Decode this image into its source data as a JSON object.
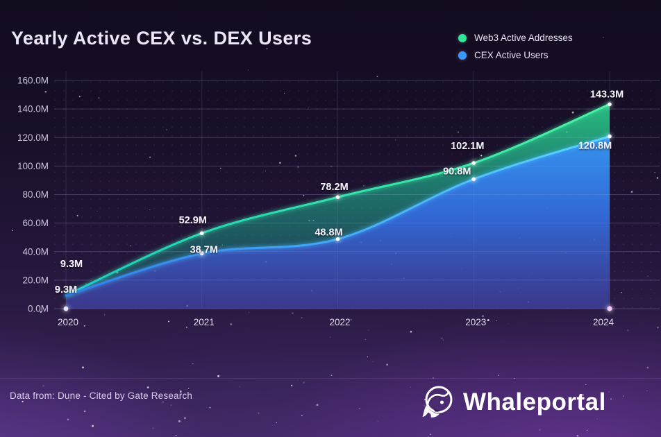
{
  "title": "Yearly Active CEX vs. DEX Users",
  "legend": [
    {
      "label": "Web3 Active Addresses",
      "color": "#2ee896"
    },
    {
      "label": "CEX Active Users",
      "color": "#3b9aff"
    }
  ],
  "footer": {
    "source_text": "Data from: Dune - Cited by Gate Research",
    "brand": "Whaleportal"
  },
  "colors": {
    "title_text": "#ece5f8",
    "axis_text": "#cbc3dd",
    "label_text": "#f4f0fb",
    "baseline_left_glow": "#4a54ff",
    "baseline_right_glow": "#d84bff"
  },
  "chart_data": {
    "type": "area",
    "categories": [
      "2020",
      "2021",
      "2022",
      "2023",
      "2024"
    ],
    "series": [
      {
        "name": "Web3 Active Addresses",
        "color": "#2ee896",
        "line_start_color": "#19cfc0",
        "line_end_color": "#4df2a2",
        "values": [
          9.3,
          52.9,
          78.2,
          102.1,
          143.3
        ],
        "labels": [
          "9.3M",
          "52.9M",
          "78.2M",
          "102.1M",
          "143.3M"
        ]
      },
      {
        "name": "CEX Active Users",
        "color": "#3b9aff",
        "line_start_color": "#2f7ff0",
        "line_end_color": "#5ad6ff",
        "values": [
          9.3,
          38.7,
          48.8,
          90.8,
          120.8
        ],
        "labels": [
          "9.3M",
          "38.7M",
          "48.8M",
          "90.8M",
          "120.8M"
        ]
      }
    ],
    "xlabel": "",
    "ylabel": "",
    "ylim": [
      0,
      160
    ],
    "ytick_step": 20,
    "yticks": [
      "160.0M",
      "140.0M",
      "120.0M",
      "100.0M",
      "80.0M",
      "60.0M",
      "40.0M",
      "20.0M",
      "0.0M"
    ],
    "grid": true,
    "legend_position": "top-right"
  }
}
